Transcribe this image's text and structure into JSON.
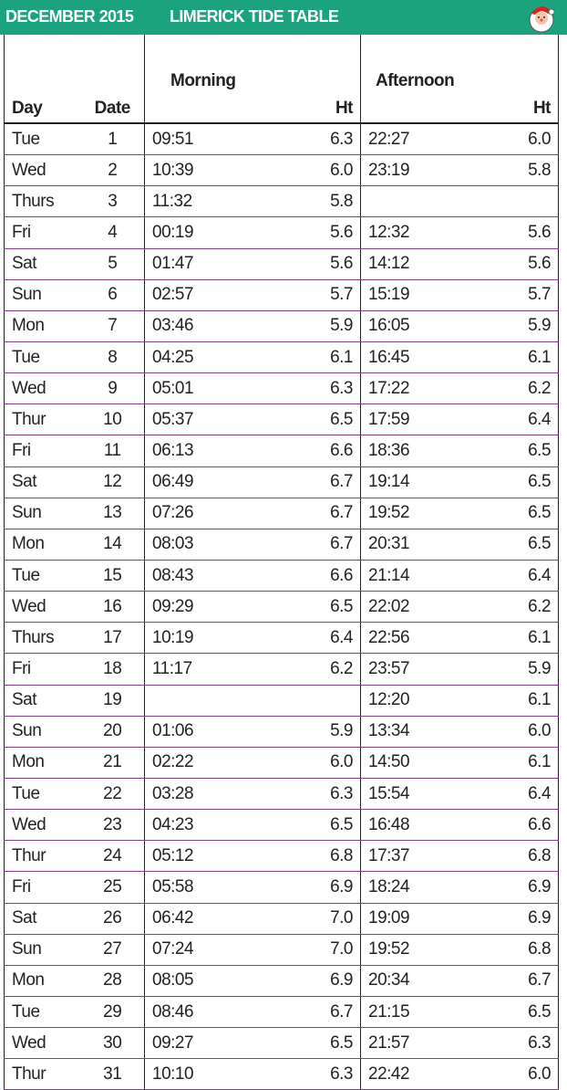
{
  "header": {
    "month": "DECEMBER 2015",
    "title": "LIMERICK TIDE TABLE"
  },
  "table": {
    "group_headers": [
      "Morning",
      "Afternoon"
    ],
    "columns": {
      "day": "Day",
      "date": "Date",
      "morning_ht": "Ht",
      "afternoon_ht": "Ht"
    },
    "rows": [
      [
        "Tue",
        "1",
        "09:51",
        "6.3",
        "22:27",
        "6.0"
      ],
      [
        "Wed",
        "2",
        "10:39",
        "6.0",
        "23:19",
        "5.8"
      ],
      [
        "Thurs",
        "3",
        "11:32",
        "5.8",
        null,
        null
      ],
      [
        "Fri",
        "4",
        "00:19",
        "5.6",
        "12:32",
        "5.6"
      ],
      [
        "Sat",
        "5",
        "01:47",
        "5.6",
        "14:12",
        "5.6"
      ],
      [
        "Sun",
        "6",
        "02:57",
        "5.7",
        "15:19",
        "5.7"
      ],
      [
        "Mon",
        "7",
        "03:46",
        "5.9",
        "16:05",
        "5.9"
      ],
      [
        "Tue",
        "8",
        "04:25",
        "6.1",
        "16:45",
        "6.1"
      ],
      [
        "Wed",
        "9",
        "05:01",
        "6.3",
        "17:22",
        "6.2"
      ],
      [
        "Thur",
        "10",
        "05:37",
        "6.5",
        "17:59",
        "6.4"
      ],
      [
        "Fri",
        "11",
        "06:13",
        "6.6",
        "18:36",
        "6.5"
      ],
      [
        "Sat",
        "12",
        "06:49",
        "6.7",
        "19:14",
        "6.5"
      ],
      [
        "Sun",
        "13",
        "07:26",
        "6.7",
        "19:52",
        "6.5"
      ],
      [
        "Mon",
        "14",
        "08:03",
        "6.7",
        "20:31",
        "6.5"
      ],
      [
        "Tue",
        "15",
        "08:43",
        "6.6",
        "21:14",
        "6.4"
      ],
      [
        "Wed",
        "16",
        "09:29",
        "6.5",
        "22:02",
        "6.2"
      ],
      [
        "Thurs",
        "17",
        "10:19",
        "6.4",
        "22:56",
        "6.1"
      ],
      [
        "Fri",
        "18",
        "11:17",
        "6.2",
        "23:57",
        "5.9"
      ],
      [
        "Sat",
        "19",
        null,
        null,
        "12:20",
        "6.1"
      ],
      [
        "Sun",
        "20",
        "01:06",
        "5.9",
        "13:34",
        "6.0"
      ],
      [
        "Mon",
        "21",
        "02:22",
        "6.0",
        "14:50",
        "6.1"
      ],
      [
        "Tue",
        "22",
        "03:28",
        "6.3",
        "15:54",
        "6.4"
      ],
      [
        "Wed",
        "23",
        "04:23",
        "6.5",
        "16:48",
        "6.6"
      ],
      [
        "Thur",
        "24",
        "05:12",
        "6.8",
        "17:37",
        "6.8"
      ],
      [
        "Fri",
        "25",
        "05:58",
        "6.9",
        "18:24",
        "6.9"
      ],
      [
        "Sat",
        "26",
        "06:42",
        "7.0",
        "19:09",
        "6.9"
      ],
      [
        "Sun",
        "27",
        "07:24",
        "7.0",
        "19:52",
        "6.8"
      ],
      [
        "Mon",
        "28",
        "08:05",
        "6.9",
        "20:34",
        "6.7"
      ],
      [
        "Tue",
        "29",
        "08:46",
        "6.7",
        "21:15",
        "6.5"
      ],
      [
        "Wed",
        "30",
        "09:27",
        "6.5",
        "21:57",
        "6.3"
      ],
      [
        "Thur",
        "31",
        "10:10",
        "6.3",
        "22:42",
        "6.0"
      ]
    ]
  }
}
